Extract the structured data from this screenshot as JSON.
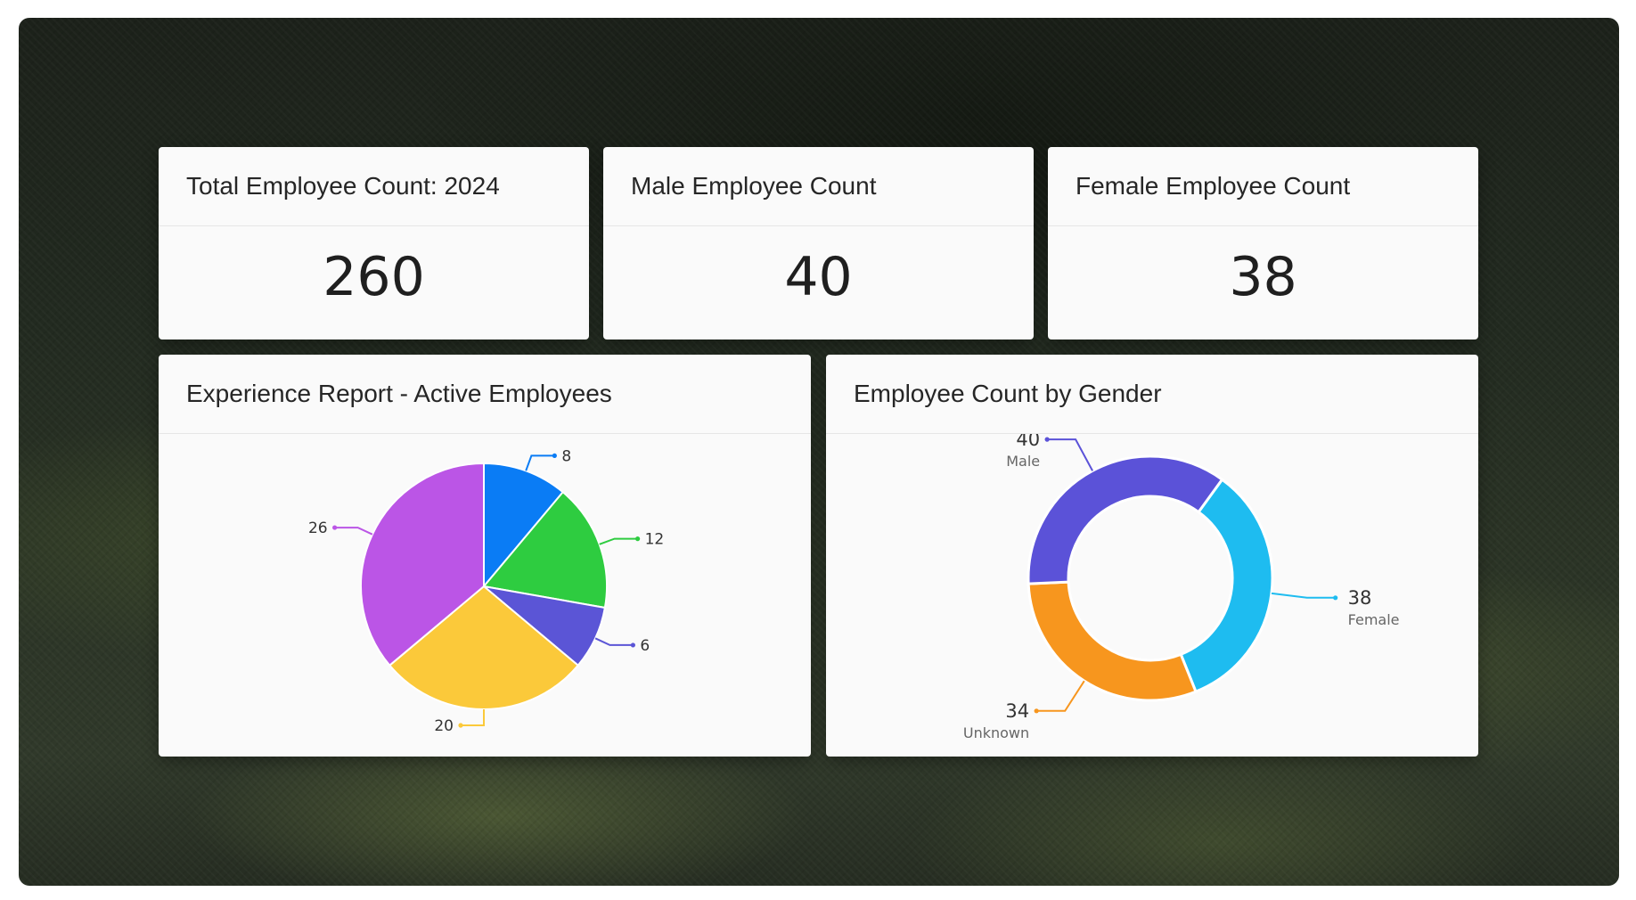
{
  "kpis": {
    "total": {
      "title": "Total Employee Count: 2024",
      "value": "260"
    },
    "male": {
      "title": "Male Employee Count",
      "value": "40"
    },
    "female": {
      "title": "Female Employee Count",
      "value": "38"
    }
  },
  "experience": {
    "title": "Experience Report - Active Employees"
  },
  "gender": {
    "title": "Employee Count by Gender"
  },
  "chart_data": [
    {
      "type": "pie",
      "title": "Experience Report - Active Employees",
      "slices": [
        {
          "value": 8,
          "label": "8",
          "color": "#0a7cf5"
        },
        {
          "value": 12,
          "label": "12",
          "color": "#2ecc40"
        },
        {
          "value": 6,
          "label": "6",
          "color": "#5b55d6"
        },
        {
          "value": 20,
          "label": "20",
          "color": "#fbc93a"
        },
        {
          "value": 26,
          "label": "26",
          "color": "#bb55e6"
        }
      ]
    },
    {
      "type": "donut",
      "title": "Employee Count by Gender",
      "slices": [
        {
          "name": "Male",
          "value": 40,
          "color": "#5b52d8"
        },
        {
          "name": "Female",
          "value": 38,
          "color": "#1ebcf0"
        },
        {
          "name": "Unknown",
          "value": 34,
          "color": "#f7961e"
        }
      ]
    }
  ]
}
